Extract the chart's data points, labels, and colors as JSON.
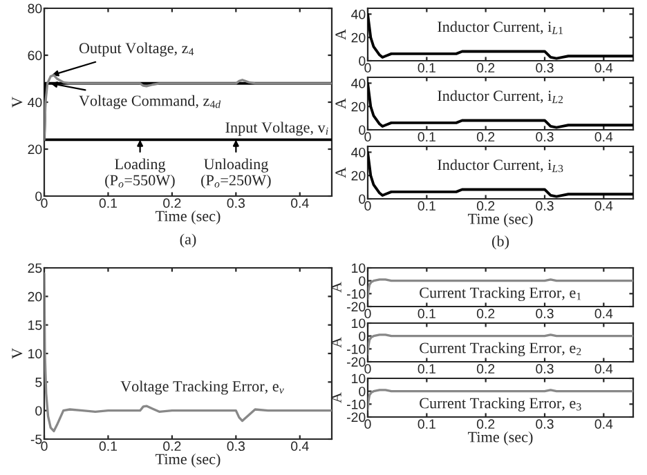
{
  "chart_data": [
    {
      "type": "line",
      "xlabel": "Time (sec)",
      "ylabel": "V",
      "xlim": [
        0,
        0.45
      ],
      "xticks": [
        0,
        0.1,
        0.2,
        0.3,
        0.4
      ],
      "ylim": [
        0,
        80
      ],
      "yticks": [
        0,
        20,
        40,
        60,
        80
      ],
      "series": [
        {
          "color": "#888888",
          "x": [
            0,
            0.002,
            0.005,
            0.01,
            0.015,
            0.02,
            0.03,
            0.04,
            0.05,
            0.15,
            0.155,
            0.16,
            0.17,
            0.18,
            0.3,
            0.305,
            0.31,
            0.32,
            0.33,
            0.45
          ],
          "values": [
            24,
            40,
            48,
            51,
            51.5,
            50,
            48.5,
            48,
            48,
            48,
            47,
            46.8,
            47.5,
            48,
            48,
            49,
            49.5,
            48.5,
            48,
            48
          ]
        },
        {
          "color": "#000000",
          "x": [
            0,
            0.002,
            0.45
          ],
          "values": [
            24,
            48,
            48
          ]
        },
        {
          "color": "#000000",
          "x": [
            0,
            0.45
          ],
          "values": [
            24,
            24
          ]
        }
      ],
      "annotations": [
        {
          "text": "Output Voltage, z$_{4}$",
          "x": 0.012,
          "y": 51.5
        },
        {
          "text": "Voltage Command, z$_{4d}$",
          "x": 0.01,
          "y": 48
        },
        "Input Voltage, v$_{i}$",
        {
          "text": "Loading\n(P$_{o}$=550W)",
          "x": 0.15,
          "y": 24
        },
        {
          "text": "Unloading\n(P$_{o}$=250W)",
          "x": 0.3,
          "y": 24
        },
        "(a)"
      ]
    },
    {
      "type": "line",
      "ylabel": "A",
      "xlim": [
        0,
        0.45
      ],
      "xticks": [
        0,
        0.1,
        0.2,
        0.3,
        0.4
      ],
      "ylim": [
        0,
        45
      ],
      "yticks": [
        0,
        20,
        40
      ],
      "series": [
        {
          "color": "#000000",
          "x": [
            0,
            0.005,
            0.01,
            0.02,
            0.025,
            0.03,
            0.04,
            0.15,
            0.16,
            0.17,
            0.3,
            0.31,
            0.32,
            0.33,
            0.34,
            0.45
          ],
          "values": [
            40,
            20,
            12,
            5,
            3,
            4,
            6,
            6,
            8,
            8,
            8,
            3,
            2,
            3,
            4,
            4
          ]
        }
      ],
      "annotations": [
        "Inductor Current, i$_{L1}$"
      ]
    },
    {
      "type": "line",
      "ylabel": "A",
      "xlim": [
        0,
        0.45
      ],
      "xticks": [
        0,
        0.1,
        0.2,
        0.3,
        0.4
      ],
      "ylim": [
        0,
        45
      ],
      "yticks": [
        0,
        20,
        40
      ],
      "series": [
        {
          "color": "#000000",
          "x": [
            0,
            0.005,
            0.01,
            0.02,
            0.025,
            0.03,
            0.04,
            0.15,
            0.16,
            0.17,
            0.3,
            0.31,
            0.32,
            0.33,
            0.34,
            0.45
          ],
          "values": [
            40,
            20,
            12,
            5,
            3,
            4,
            6,
            6,
            8,
            8,
            8,
            3,
            2,
            3,
            4,
            4
          ]
        }
      ],
      "annotations": [
        "Inductor Current, i$_{L2}$"
      ]
    },
    {
      "type": "line",
      "xlabel": "Time (sec)",
      "ylabel": "A",
      "xlim": [
        0,
        0.45
      ],
      "xticks": [
        0,
        0.1,
        0.2,
        0.3,
        0.4
      ],
      "ylim": [
        0,
        45
      ],
      "yticks": [
        0,
        20,
        40
      ],
      "series": [
        {
          "color": "#000000",
          "x": [
            0,
            0.005,
            0.01,
            0.02,
            0.025,
            0.03,
            0.04,
            0.15,
            0.16,
            0.17,
            0.3,
            0.31,
            0.32,
            0.33,
            0.34,
            0.45
          ],
          "values": [
            40,
            20,
            12,
            5,
            3,
            4,
            6,
            6,
            8,
            8,
            8,
            3,
            2,
            3,
            4,
            4
          ]
        }
      ],
      "annotations": [
        "Inductor Current, i$_{L3}$",
        "(b)"
      ]
    },
    {
      "type": "line",
      "xlabel": "Time (sec)",
      "ylabel": "V",
      "xlim": [
        0,
        0.45
      ],
      "xticks": [
        0,
        0.1,
        0.2,
        0.3,
        0.4
      ],
      "ylim": [
        -5,
        25
      ],
      "yticks": [
        -5,
        0,
        5,
        10,
        15,
        20,
        25
      ],
      "series": [
        {
          "color": "#888888",
          "x": [
            0,
            0.001,
            0.003,
            0.006,
            0.01,
            0.015,
            0.02,
            0.03,
            0.04,
            0.06,
            0.08,
            0.1,
            0.15,
            0.155,
            0.16,
            0.17,
            0.18,
            0.2,
            0.3,
            0.305,
            0.31,
            0.32,
            0.33,
            0.35,
            0.45
          ],
          "values": [
            24,
            10,
            3,
            -1,
            -3,
            -3.6,
            -2.5,
            0,
            0.2,
            0,
            -0.2,
            0,
            0,
            0.7,
            0.8,
            0.3,
            -0.2,
            0,
            0,
            -1.2,
            -1.8,
            -0.8,
            0.2,
            0,
            0
          ]
        }
      ],
      "annotations": [
        "Voltage Tracking Error, e$_{v}$"
      ]
    },
    {
      "type": "line",
      "ylabel": "A",
      "xlim": [
        0,
        0.45
      ],
      "xticks": [
        0,
        0.1,
        0.2,
        0.3,
        0.4
      ],
      "ylim": [
        -20,
        10
      ],
      "yticks": [
        -20,
        -10,
        0,
        10
      ],
      "series": [
        {
          "color": "#888888",
          "x": [
            0,
            0.001,
            0.003,
            0.006,
            0.01,
            0.02,
            0.03,
            0.04,
            0.3,
            0.31,
            0.32,
            0.45
          ],
          "values": [
            -14,
            -8,
            -3,
            -1,
            0,
            1,
            1,
            0,
            0,
            1,
            0,
            0
          ]
        }
      ],
      "annotations": [
        "Current Tracking Error, e$_{1}$"
      ]
    },
    {
      "type": "line",
      "ylabel": "A",
      "xlim": [
        0,
        0.45
      ],
      "xticks": [
        0,
        0.1,
        0.2,
        0.3,
        0.4
      ],
      "ylim": [
        -20,
        10
      ],
      "yticks": [
        -20,
        -10,
        0,
        10
      ],
      "series": [
        {
          "color": "#888888",
          "x": [
            0,
            0.001,
            0.003,
            0.006,
            0.01,
            0.02,
            0.03,
            0.04,
            0.3,
            0.31,
            0.32,
            0.45
          ],
          "values": [
            -14,
            -8,
            -3,
            -1,
            0,
            1,
            1,
            0,
            0,
            1,
            0,
            0
          ]
        }
      ],
      "annotations": [
        "Current Tracking Error, e$_{2}$"
      ]
    },
    {
      "type": "line",
      "xlabel": "Time (sec)",
      "ylabel": "A",
      "xlim": [
        0,
        0.45
      ],
      "xticks": [
        0,
        0.1,
        0.2,
        0.3,
        0.4
      ],
      "ylim": [
        -20,
        10
      ],
      "yticks": [
        -20,
        -10,
        0,
        10
      ],
      "series": [
        {
          "color": "#888888",
          "x": [
            0,
            0.001,
            0.003,
            0.006,
            0.01,
            0.02,
            0.03,
            0.04,
            0.3,
            0.31,
            0.32,
            0.45
          ],
          "values": [
            -14,
            -8,
            -3,
            -1,
            0,
            1,
            1,
            0,
            0,
            1,
            0,
            0
          ]
        }
      ],
      "annotations": [
        "Current Tracking Error, e$_{3}$"
      ]
    }
  ]
}
